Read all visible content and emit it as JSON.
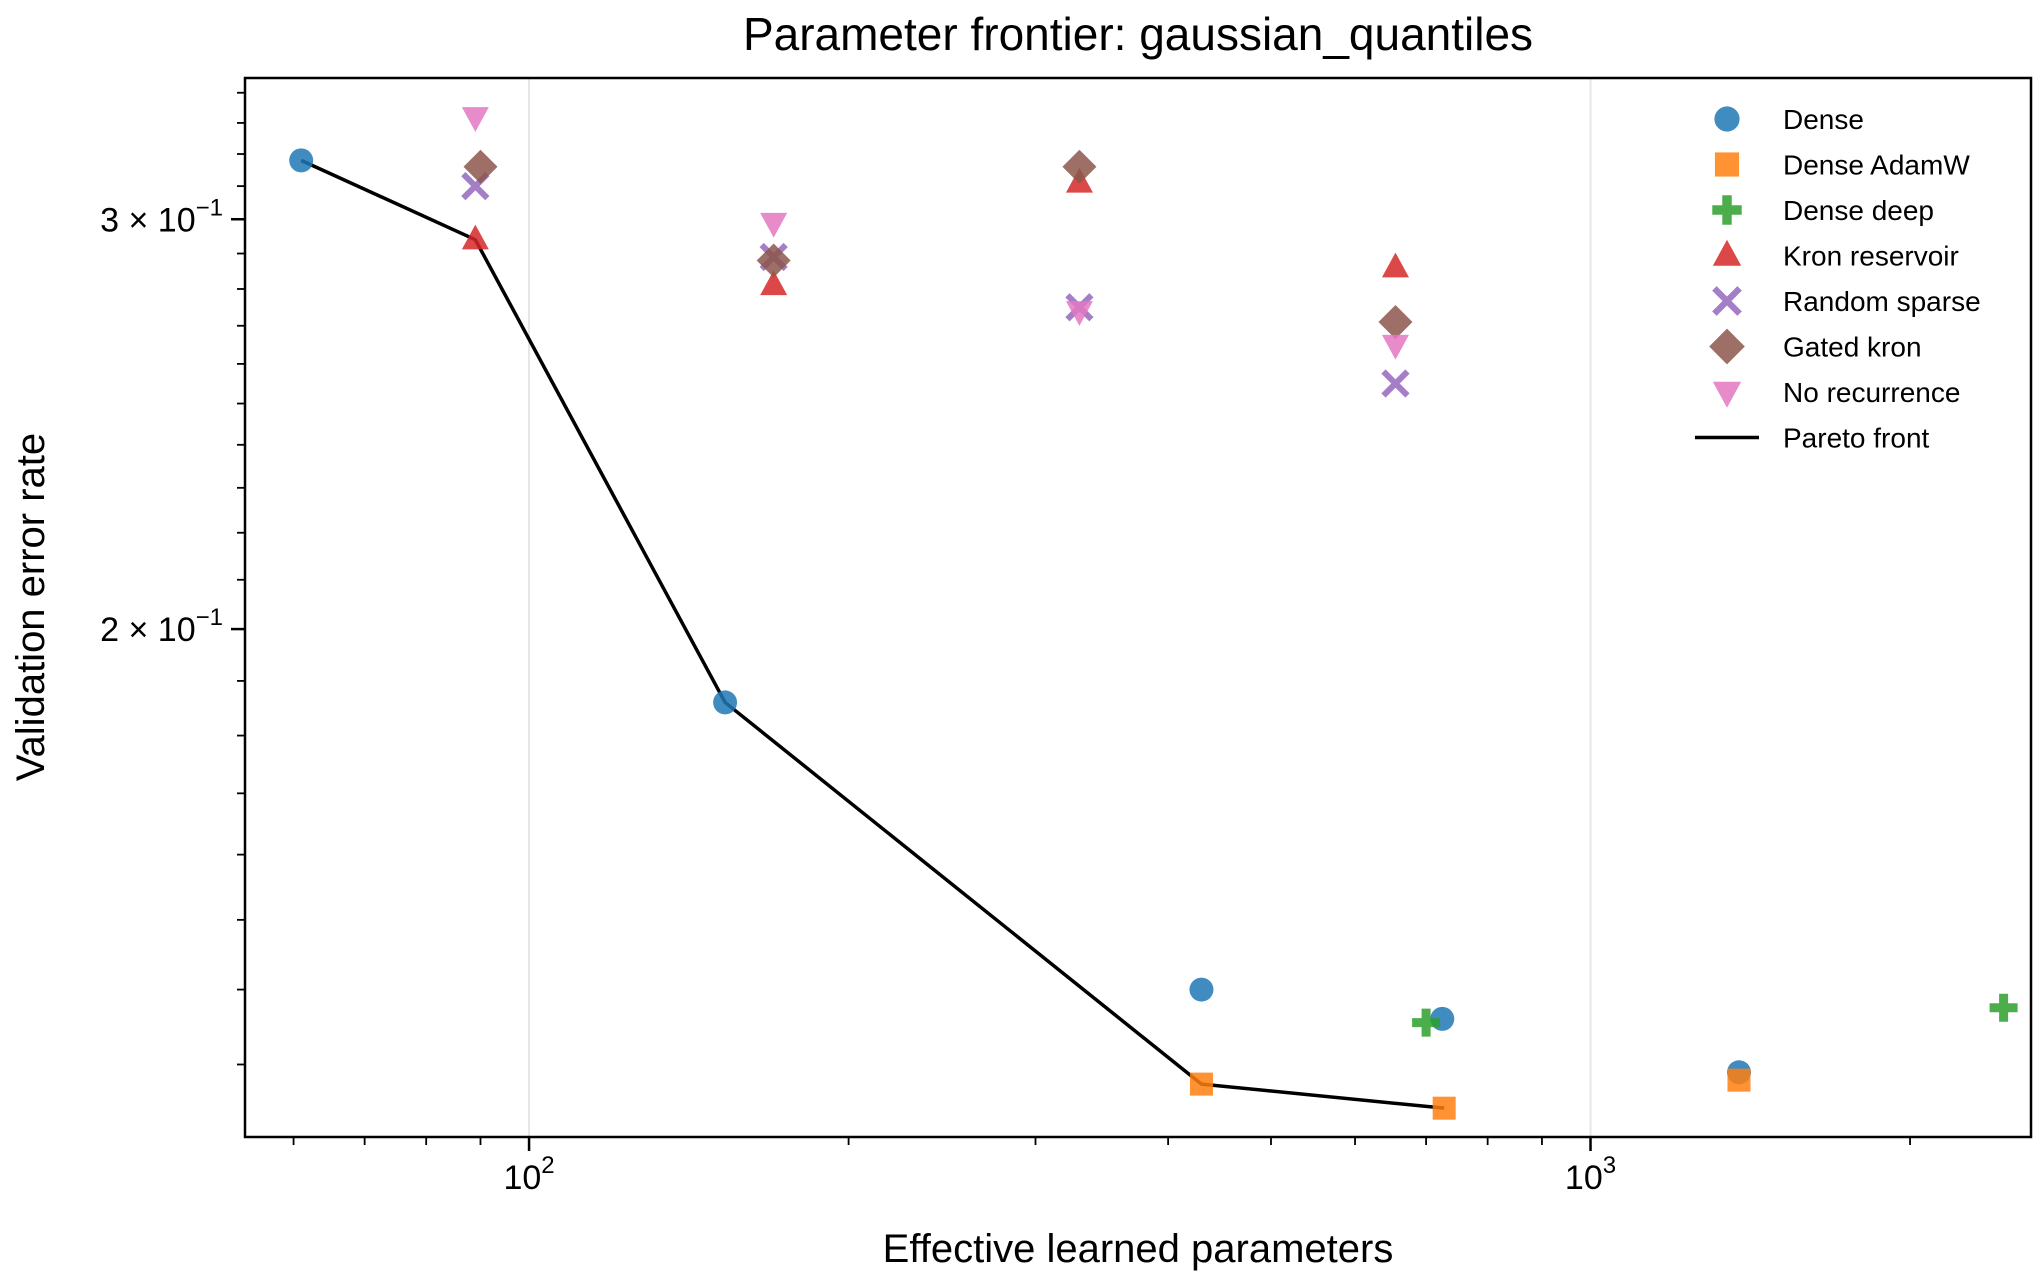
{
  "chart_data": {
    "type": "scatter",
    "title": "Parameter frontier: gaussian_quantiles",
    "xlabel": "Effective learned parameters",
    "ylabel": "Validation error rate",
    "xscale": "log",
    "yscale": "log",
    "xlim": [
      54,
      2600
    ],
    "ylim": [
      0.121,
      0.345
    ],
    "xticks": [
      {
        "value": 100,
        "label": "10",
        "sup": "2"
      },
      {
        "value": 1000,
        "label": "10",
        "sup": "3"
      }
    ],
    "yticks": [
      {
        "value": 0.2,
        "label": "2 × 10",
        "sup": "−1"
      },
      {
        "value": 0.3,
        "label": "3 × 10",
        "sup": "−1"
      }
    ],
    "grid": "x-major",
    "legend_position": "top-right",
    "series": [
      {
        "name": "Dense",
        "marker": "circle",
        "color": "#1f77b4",
        "points": [
          [
            61,
            0.318
          ],
          [
            153,
            0.186
          ],
          [
            430,
            0.14
          ],
          [
            725,
            0.136
          ],
          [
            1380,
            0.129
          ]
        ]
      },
      {
        "name": "Dense AdamW",
        "marker": "square",
        "color": "#ff7f0e",
        "points": [
          [
            430,
            0.1275
          ],
          [
            728,
            0.1245
          ],
          [
            1380,
            0.128
          ]
        ]
      },
      {
        "name": "Dense deep",
        "marker": "plus",
        "color": "#2ca02c",
        "points": [
          [
            700,
            0.1355
          ],
          [
            2450,
            0.1375
          ]
        ]
      },
      {
        "name": "Kron reservoir",
        "marker": "triangle-up",
        "color": "#d62728",
        "points": [
          [
            89,
            0.294
          ],
          [
            170,
            0.281
          ],
          [
            330,
            0.311
          ],
          [
            655,
            0.286
          ]
        ]
      },
      {
        "name": "Random sparse",
        "marker": "x",
        "color": "#9467bd",
        "points": [
          [
            89,
            0.31
          ],
          [
            170,
            0.289
          ],
          [
            330,
            0.275
          ],
          [
            655,
            0.255
          ]
        ]
      },
      {
        "name": "Gated kron",
        "marker": "diamond",
        "color": "#8c564b",
        "points": [
          [
            90,
            0.316
          ],
          [
            170,
            0.288
          ],
          [
            330,
            0.316
          ],
          [
            655,
            0.271
          ]
        ]
      },
      {
        "name": "No recurrence",
        "marker": "triangle-down",
        "color": "#e377c2",
        "points": [
          [
            89,
            0.332
          ],
          [
            170,
            0.299
          ],
          [
            330,
            0.274
          ],
          [
            655,
            0.265
          ]
        ]
      }
    ],
    "pareto_front": {
      "name": "Pareto front",
      "color": "#000000",
      "points": [
        [
          61,
          0.318
        ],
        [
          89,
          0.294
        ],
        [
          153,
          0.186
        ],
        [
          430,
          0.1275
        ],
        [
          728,
          0.1245
        ]
      ]
    }
  }
}
